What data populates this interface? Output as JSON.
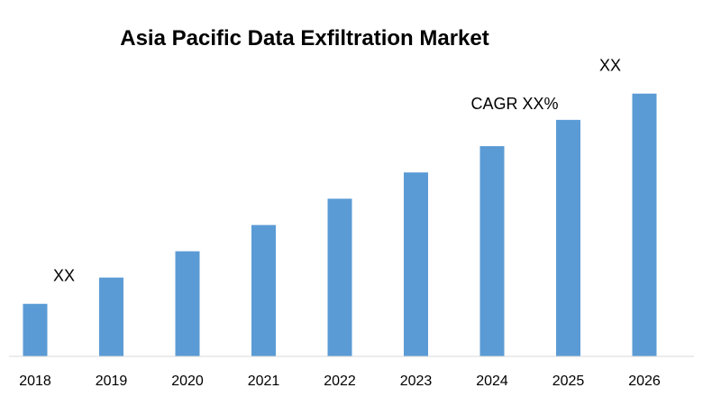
{
  "chart_data": {
    "type": "bar",
    "title": "Asia Pacific Data Exfiltration Market",
    "xlabel": "",
    "ylabel": "",
    "categories": [
      "2018",
      "2019",
      "2020",
      "2021",
      "2022",
      "2023",
      "2024",
      "2025",
      "2026"
    ],
    "values": [
      2,
      3,
      4,
      5,
      6,
      7,
      8,
      9,
      10
    ],
    "ylim": [
      0,
      10.3
    ],
    "grid": false,
    "legend": "none",
    "bar_color": "#5b9bd5",
    "annotations": [
      {
        "text": "XX",
        "category": "2018"
      },
      {
        "text": "CAGR XX%",
        "category": "2024"
      },
      {
        "text": "XX",
        "category": "2026"
      }
    ]
  }
}
